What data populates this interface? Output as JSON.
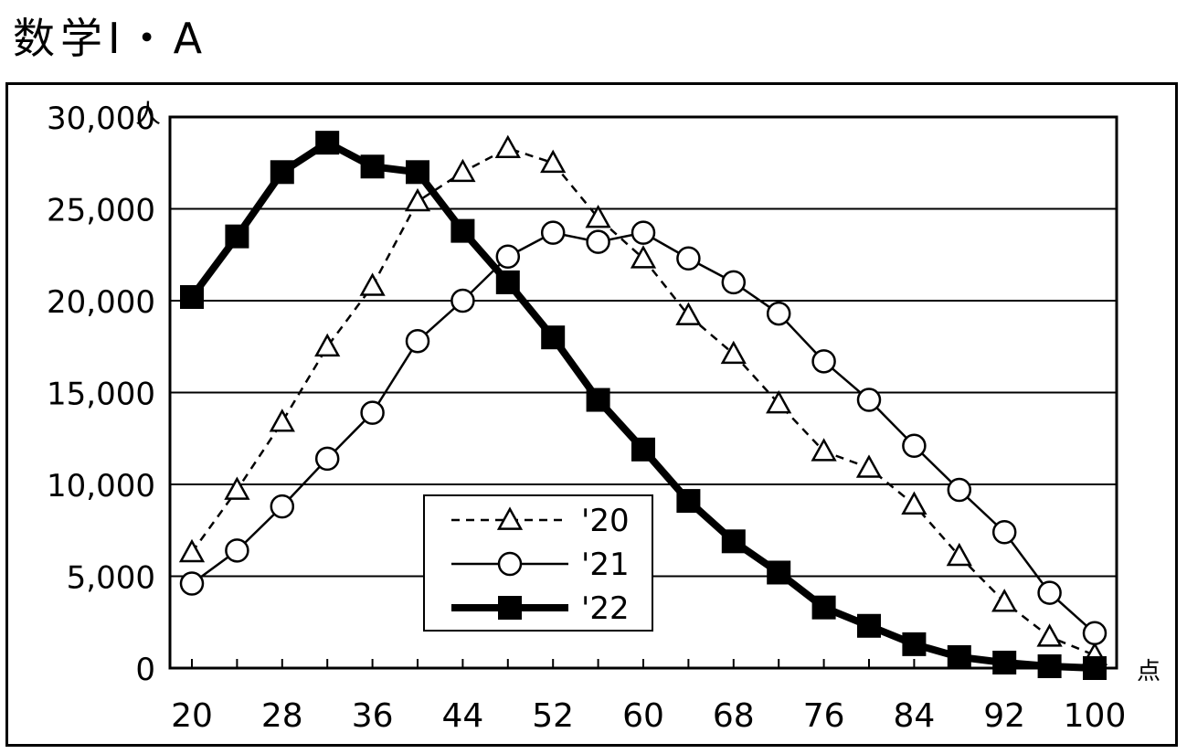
{
  "page": {
    "title": "数学Ⅰ・A"
  },
  "chart_data": {
    "type": "line",
    "title": "数学Ⅰ・A",
    "xlabel": "",
    "ylabel": "",
    "y_unit": "人",
    "x_unit": "点",
    "xlim": [
      20,
      100
    ],
    "ylim": [
      0,
      30000
    ],
    "y_ticks": [
      0,
      5000,
      10000,
      15000,
      20000,
      25000,
      30000
    ],
    "y_tick_labels": [
      "0",
      "5,000",
      "10,000",
      "15,000",
      "20,000",
      "25,000",
      "30,000"
    ],
    "x_tick_labels": [
      "20",
      "28",
      "36",
      "44",
      "52",
      "60",
      "68",
      "76",
      "84",
      "92",
      "100"
    ],
    "x": [
      20,
      24,
      28,
      32,
      36,
      40,
      44,
      48,
      52,
      56,
      60,
      64,
      68,
      72,
      76,
      80,
      84,
      88,
      92,
      96,
      100
    ],
    "grid": "horizontal",
    "legend_position": "bottom-center",
    "series": [
      {
        "name": "'20",
        "marker": "triangle-open",
        "line": "dashed",
        "values": [
          6300,
          9700,
          13400,
          17500,
          20800,
          25400,
          27000,
          28300,
          27500,
          24500,
          22300,
          19200,
          17100,
          14400,
          11800,
          10900,
          8900,
          6100,
          3600,
          1700,
          700
        ]
      },
      {
        "name": "'21",
        "marker": "circle-open",
        "line": "solid",
        "values": [
          4600,
          6400,
          8800,
          11400,
          13900,
          17800,
          20000,
          22400,
          23700,
          23200,
          23700,
          22300,
          21000,
          19300,
          16700,
          14600,
          12100,
          9700,
          7400,
          4100,
          1900
        ]
      },
      {
        "name": "'22",
        "marker": "square-filled",
        "line": "bold",
        "values": [
          20200,
          23500,
          27000,
          28600,
          27300,
          27000,
          23800,
          21000,
          18000,
          14600,
          11900,
          9100,
          6900,
          5200,
          3300,
          2300,
          1300,
          600,
          300,
          100,
          0
        ]
      }
    ]
  }
}
